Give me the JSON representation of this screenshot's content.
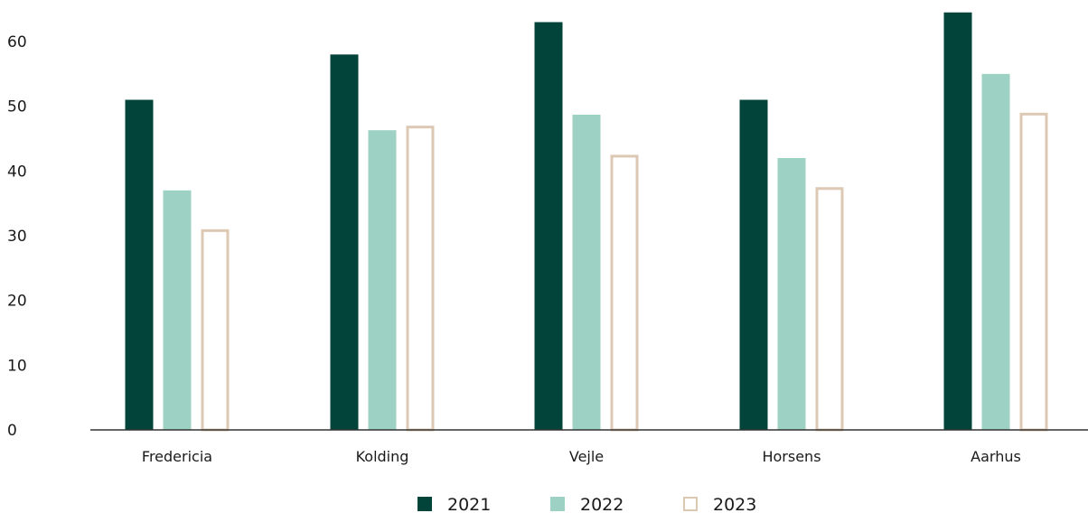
{
  "chart_data": {
    "type": "bar",
    "title": "",
    "xlabel": "",
    "ylabel": "",
    "ylim": [
      0,
      65
    ],
    "yticks": [
      0,
      10,
      20,
      30,
      40,
      50,
      60
    ],
    "grid": false,
    "legend_position": "bottom-center",
    "categories": [
      "Fredericia",
      "Kolding",
      "Vejle",
      "Horsens",
      "Aarhus"
    ],
    "series": [
      {
        "name": "2021",
        "values": [
          51,
          58,
          63,
          51,
          64.5
        ],
        "color": "#03443a",
        "style": "filled"
      },
      {
        "name": "2022",
        "values": [
          37,
          46.3,
          48.7,
          42,
          55
        ],
        "color": "#9dd1c3",
        "style": "filled"
      },
      {
        "name": "2023",
        "values": [
          31,
          47,
          42.5,
          37.5,
          49
        ],
        "color": "#dcc8b3",
        "style": "outline"
      }
    ]
  }
}
